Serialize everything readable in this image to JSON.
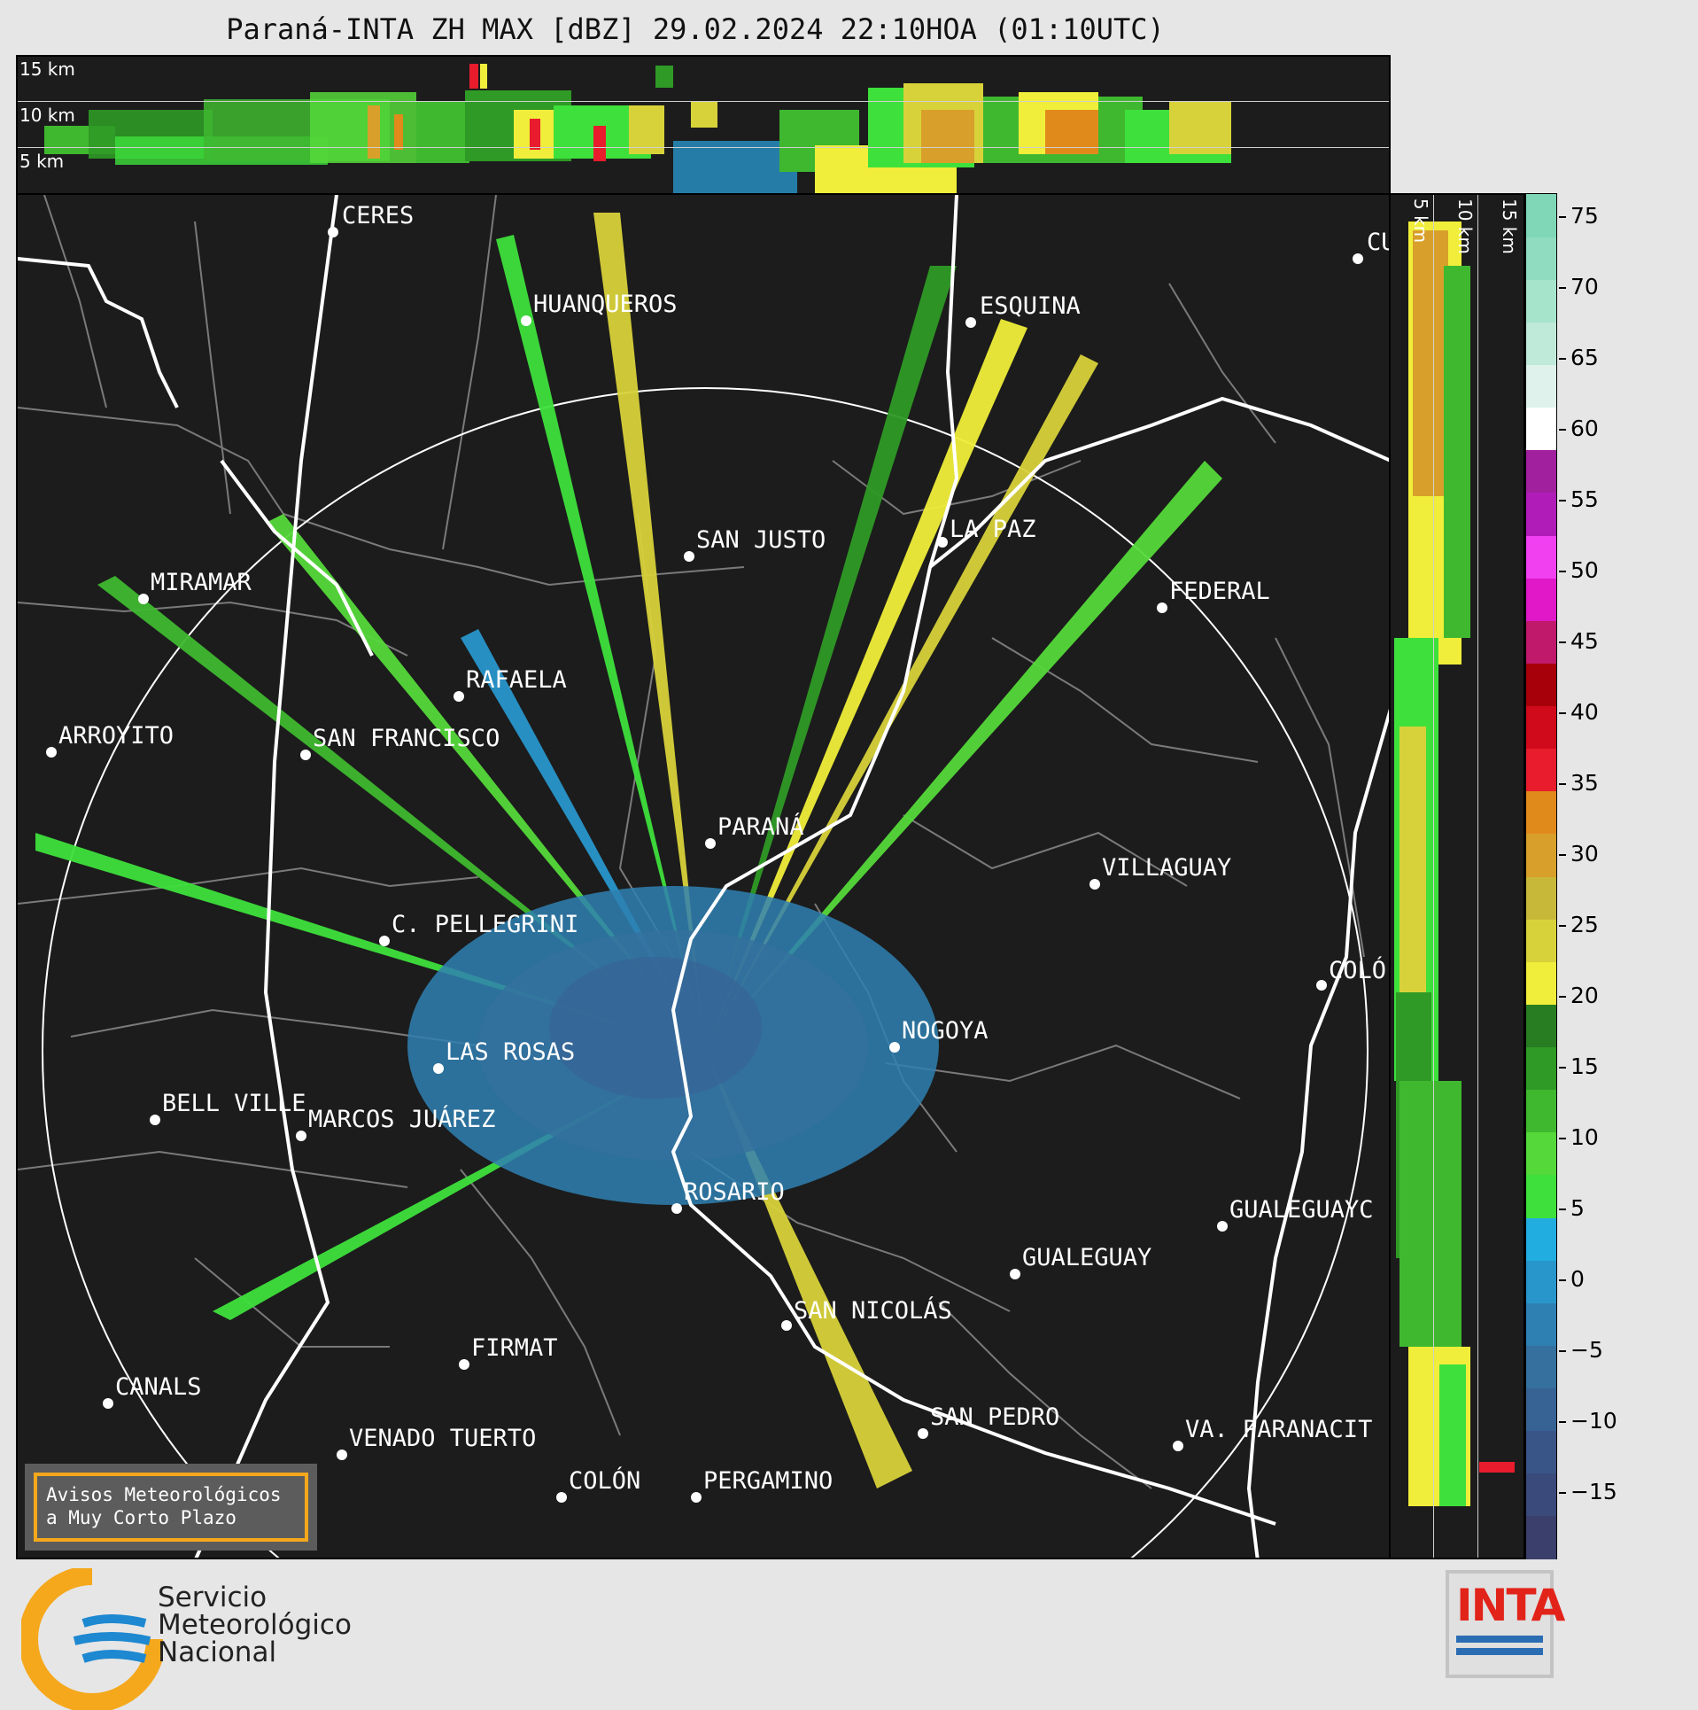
{
  "title": "Paraná-INTA ZH MAX [dBZ] 29.02.2024 22:10HOA (01:10UTC)",
  "top_panel": {
    "altitude_labels": [
      "15 km",
      "10 km",
      "5 km"
    ]
  },
  "side_panel": {
    "altitude_labels": [
      "5 km",
      "10 km",
      "15 km"
    ]
  },
  "map": {
    "cities": [
      {
        "name": "CERES"
      },
      {
        "name": "HUANQUEROS"
      },
      {
        "name": "ESQUINA"
      },
      {
        "name": "CU"
      },
      {
        "name": "MIRAMAR"
      },
      {
        "name": "SAN JUSTO"
      },
      {
        "name": "LA PAZ"
      },
      {
        "name": "FEDERAL"
      },
      {
        "name": "RAFAELA"
      },
      {
        "name": "ARROYITO"
      },
      {
        "name": "SAN FRANCISCO"
      },
      {
        "name": "PARANÁ"
      },
      {
        "name": "VILLAGUAY"
      },
      {
        "name": "C. PELLEGRINI"
      },
      {
        "name": "COLÓ"
      },
      {
        "name": "NOGOYA"
      },
      {
        "name": "LAS ROSAS"
      },
      {
        "name": "BELL VILLE"
      },
      {
        "name": "MARCOS JUÁREZ"
      },
      {
        "name": "ROSARIO"
      },
      {
        "name": "GUALEGUAYC"
      },
      {
        "name": "GUALEGUAY"
      },
      {
        "name": "SAN NICOLÁS"
      },
      {
        "name": "FIRMAT"
      },
      {
        "name": "CANALS"
      },
      {
        "name": "SAN PEDRO"
      },
      {
        "name": "VA. PARANACIT"
      },
      {
        "name": "VENADO TUERTO"
      },
      {
        "name": "COLÓN"
      },
      {
        "name": "PERGAMINO"
      }
    ]
  },
  "colorbar": {
    "ticks": [
      "75",
      "70",
      "65",
      "60",
      "55",
      "50",
      "45",
      "40",
      "35",
      "30",
      "25",
      "20",
      "15",
      "10",
      "5",
      "0",
      "−5",
      "−10",
      "−15"
    ],
    "colors": [
      "#3b3f6b",
      "#3a4a7a",
      "#395588",
      "#376394",
      "#35709e",
      "#2f80b2",
      "#2896cb",
      "#22ade0",
      "#3ee03c",
      "#55d93a",
      "#3fb830",
      "#2f9a26",
      "#287d22",
      "#f0ee3a",
      "#d8d23a",
      "#c8b83a",
      "#d8a02a",
      "#e08a1c",
      "#e81c2c",
      "#d00a1a",
      "#a8000a",
      "#c0186a",
      "#e018c8",
      "#f040f0",
      "#b01cb8",
      "#a0209e",
      "#ffffff",
      "#dff3ec",
      "#bfe9d9",
      "#a6e4cc",
      "#8fdcc0",
      "#7fd7b8"
    ]
  },
  "badge": {
    "line1": "Avisos Meteorológicos",
    "line2": "a Muy Corto Plazo"
  },
  "smn": {
    "line1": "Servicio",
    "line2": "Meteorológico",
    "line3": "Nacional"
  },
  "inta": {
    "label": "INTA"
  }
}
